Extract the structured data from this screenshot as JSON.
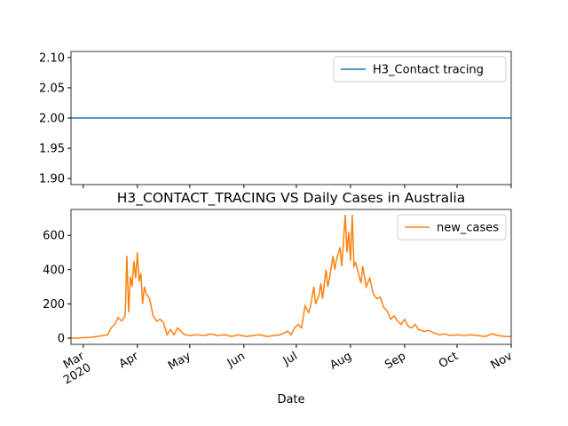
{
  "chart_data": [
    {
      "type": "line",
      "title": null,
      "x": [
        "2020-02-23",
        "2020-11-01"
      ],
      "series": [
        {
          "name": "H3_Contact tracing",
          "color": "#1f77b4",
          "values": [
            2,
            2
          ]
        }
      ],
      "xlim": [
        "2020-02-23",
        "2020-11-01"
      ],
      "xticks": [
        "2020-03-01",
        "2020-04-01",
        "2020-05-01",
        "2020-06-01",
        "2020-07-01",
        "2020-08-01",
        "2020-09-01",
        "2020-10-01",
        "2020-11-01"
      ],
      "ylim": [
        1.89,
        2.11
      ],
      "yticks": [
        {
          "value": 1.9,
          "label": "1.90"
        },
        {
          "value": 1.95,
          "label": "1.95"
        },
        {
          "value": 2.0,
          "label": "2.00"
        },
        {
          "value": 2.05,
          "label": "2.05"
        },
        {
          "value": 2.1,
          "label": "2.10"
        }
      ],
      "legend": "upper right"
    },
    {
      "type": "line",
      "title": "H3_CONTACT_TRACING VS Daily Cases in Australia",
      "xlabel": "Date",
      "x": [
        "2020-02-23",
        "2020-02-27",
        "2020-03-01",
        "2020-03-05",
        "2020-03-09",
        "2020-03-12",
        "2020-03-15",
        "2020-03-17",
        "2020-03-19",
        "2020-03-21",
        "2020-03-23",
        "2020-03-25",
        "2020-03-26",
        "2020-03-27",
        "2020-03-28",
        "2020-03-29",
        "2020-03-30",
        "2020-03-31",
        "2020-04-01",
        "2020-04-02",
        "2020-04-03",
        "2020-04-04",
        "2020-04-05",
        "2020-04-06",
        "2020-04-08",
        "2020-04-10",
        "2020-04-12",
        "2020-04-14",
        "2020-04-16",
        "2020-04-18",
        "2020-04-20",
        "2020-04-22",
        "2020-04-24",
        "2020-04-26",
        "2020-04-28",
        "2020-05-01",
        "2020-05-05",
        "2020-05-09",
        "2020-05-13",
        "2020-05-17",
        "2020-05-21",
        "2020-05-25",
        "2020-05-29",
        "2020-06-02",
        "2020-06-06",
        "2020-06-10",
        "2020-06-14",
        "2020-06-18",
        "2020-06-22",
        "2020-06-26",
        "2020-06-28",
        "2020-06-30",
        "2020-07-02",
        "2020-07-04",
        "2020-07-06",
        "2020-07-08",
        "2020-07-09",
        "2020-07-11",
        "2020-07-12",
        "2020-07-14",
        "2020-07-15",
        "2020-07-16",
        "2020-07-18",
        "2020-07-19",
        "2020-07-20",
        "2020-07-22",
        "2020-07-23",
        "2020-07-24",
        "2020-07-26",
        "2020-07-27",
        "2020-07-29",
        "2020-07-30",
        "2020-07-31",
        "2020-08-01",
        "2020-08-02",
        "2020-08-03",
        "2020-08-04",
        "2020-08-05",
        "2020-08-07",
        "2020-08-08",
        "2020-08-10",
        "2020-08-12",
        "2020-08-14",
        "2020-08-16",
        "2020-08-18",
        "2020-08-20",
        "2020-08-22",
        "2020-08-24",
        "2020-08-26",
        "2020-08-28",
        "2020-08-30",
        "2020-09-01",
        "2020-09-03",
        "2020-09-05",
        "2020-09-07",
        "2020-09-09",
        "2020-09-12",
        "2020-09-15",
        "2020-09-18",
        "2020-09-21",
        "2020-09-24",
        "2020-09-27",
        "2020-10-01",
        "2020-10-05",
        "2020-10-09",
        "2020-10-13",
        "2020-10-17",
        "2020-10-21",
        "2020-10-25",
        "2020-10-28",
        "2020-11-01"
      ],
      "series": [
        {
          "name": "new_cases",
          "color": "#ff7f0e",
          "values": [
            0,
            1,
            3,
            5,
            10,
            15,
            20,
            60,
            80,
            120,
            100,
            130,
            480,
            150,
            360,
            300,
            450,
            350,
            500,
            330,
            380,
            200,
            300,
            260,
            230,
            130,
            100,
            110,
            90,
            20,
            50,
            20,
            60,
            40,
            20,
            15,
            20,
            15,
            25,
            15,
            20,
            10,
            20,
            10,
            15,
            20,
            10,
            15,
            20,
            40,
            20,
            60,
            80,
            60,
            190,
            150,
            180,
            300,
            200,
            250,
            320,
            230,
            400,
            300,
            350,
            480,
            400,
            460,
            530,
            420,
            720,
            500,
            620,
            450,
            720,
            420,
            440,
            400,
            320,
            420,
            300,
            350,
            260,
            230,
            240,
            180,
            160,
            110,
            130,
            100,
            80,
            110,
            70,
            60,
            80,
            50,
            40,
            45,
            30,
            20,
            25,
            15,
            20,
            15,
            20,
            15,
            10,
            25,
            15,
            10,
            10
          ]
        }
      ],
      "xlim": [
        "2020-02-23",
        "2020-11-01"
      ],
      "xticks": [
        {
          "value": "2020-03-01",
          "label": "Mar\n2020"
        },
        {
          "value": "2020-04-01",
          "label": "Apr"
        },
        {
          "value": "2020-05-01",
          "label": "May"
        },
        {
          "value": "2020-06-01",
          "label": "Jun"
        },
        {
          "value": "2020-07-01",
          "label": "Jul"
        },
        {
          "value": "2020-08-01",
          "label": "Aug"
        },
        {
          "value": "2020-09-01",
          "label": "Sep"
        },
        {
          "value": "2020-10-01",
          "label": "Oct"
        },
        {
          "value": "2020-11-01",
          "label": "Nov"
        }
      ],
      "ylim": [
        -36,
        751
      ],
      "yticks": [
        0,
        200,
        400,
        600
      ],
      "legend": "upper right"
    }
  ]
}
